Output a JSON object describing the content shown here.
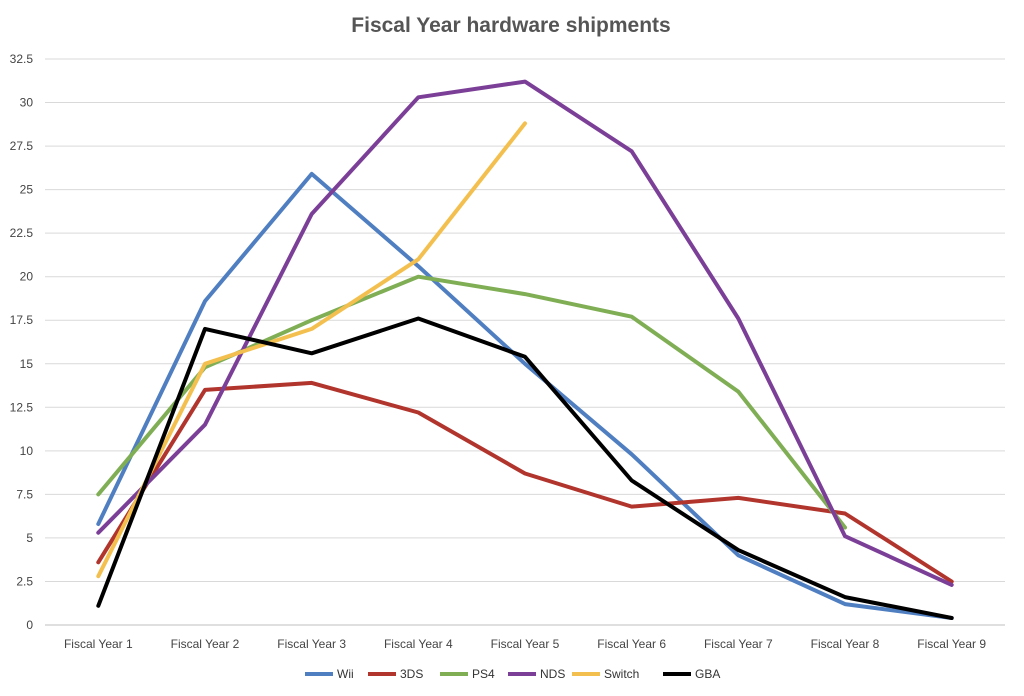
{
  "chart_data": {
    "type": "line",
    "title": "Fiscal Year hardware shipments",
    "xlabel": "",
    "ylabel": "",
    "categories": [
      "Fiscal Year 1",
      "Fiscal Year 2",
      "Fiscal Year 3",
      "Fiscal Year 4",
      "Fiscal Year 5",
      "Fiscal Year 6",
      "Fiscal Year 7",
      "Fiscal Year 8",
      "Fiscal Year 9"
    ],
    "ylim": [
      0,
      32.5
    ],
    "yticks": [
      "0",
      "2.5",
      "5",
      "7.5",
      "10",
      "12.5",
      "15",
      "17.5",
      "20",
      "22.5",
      "25",
      "27.5",
      "30",
      "32.5"
    ],
    "grid": true,
    "legend_position": "bottom",
    "series": [
      {
        "name": "Wii",
        "color": "#4f7ec1",
        "values": [
          5.8,
          18.6,
          25.9,
          20.6,
          15.0,
          9.8,
          4.0,
          1.2,
          0.4
        ]
      },
      {
        "name": "3DS",
        "color": "#b1352d",
        "values": [
          3.6,
          13.5,
          13.9,
          12.2,
          8.7,
          6.8,
          7.3,
          6.4,
          2.5
        ]
      },
      {
        "name": "PS4",
        "color": "#7fae55",
        "values": [
          7.5,
          14.8,
          17.5,
          20.0,
          19.0,
          17.7,
          13.4,
          5.6,
          null
        ]
      },
      {
        "name": "NDS",
        "color": "#7c3f98",
        "values": [
          5.3,
          11.5,
          23.6,
          30.3,
          31.2,
          27.2,
          17.6,
          5.1,
          2.3
        ]
      },
      {
        "name": "Switch",
        "color": "#f3c04f",
        "values": [
          2.8,
          15.0,
          17.0,
          21.0,
          28.8,
          null,
          null,
          null,
          null
        ]
      },
      {
        "name": "GBA",
        "color": "#000000",
        "values": [
          1.1,
          17.0,
          15.6,
          17.6,
          15.4,
          8.3,
          4.3,
          1.6,
          0.4
        ]
      }
    ]
  }
}
